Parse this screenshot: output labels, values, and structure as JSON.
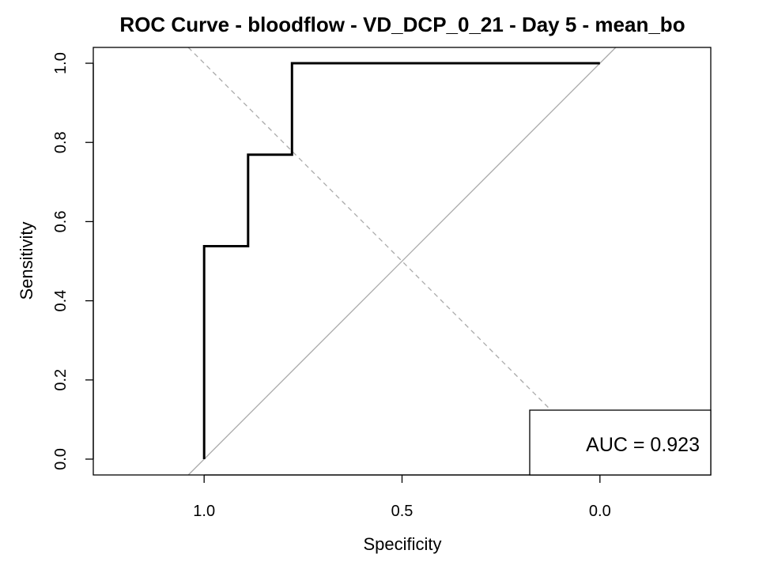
{
  "chart_data": {
    "type": "line",
    "title": "ROC Curve - bloodflow - VD_DCP_0_21 - Day 5 - mean_bo",
    "xlabel": "Specificity",
    "ylabel": "Sensitivity",
    "x_reversed": true,
    "xlim": [
      1.28,
      -0.28
    ],
    "ylim": [
      -0.04,
      1.04
    ],
    "x_ticks": [
      1.0,
      0.5,
      0.0
    ],
    "x_tick_labels": [
      "1.0",
      "0.5",
      "0.0"
    ],
    "y_ticks": [
      0.0,
      0.2,
      0.4,
      0.6,
      0.8,
      1.0
    ],
    "y_tick_labels": [
      "0.0",
      "0.2",
      "0.4",
      "0.6",
      "0.8",
      "1.0"
    ],
    "series": [
      {
        "name": "ROC",
        "specificity": [
          1.0,
          1.0,
          0.889,
          0.889,
          0.778,
          0.778,
          0.0
        ],
        "sensitivity": [
          0.0,
          0.538,
          0.538,
          0.769,
          0.769,
          1.0,
          1.0
        ]
      }
    ],
    "reference_lines": [
      {
        "name": "chance-diagonal",
        "style": "solid",
        "points": [
          [
            1.04,
            -0.04
          ],
          [
            -0.04,
            1.04
          ]
        ]
      },
      {
        "name": "youden-line",
        "style": "dashed",
        "points": [
          [
            1.04,
            1.04
          ],
          [
            -0.04,
            -0.04
          ]
        ]
      }
    ],
    "annotation": "AUC = 0.923",
    "legend_position": "bottom-right",
    "colors": {
      "curve": "#000000",
      "reference": "#aaaaaa",
      "axes": "#000000"
    }
  }
}
